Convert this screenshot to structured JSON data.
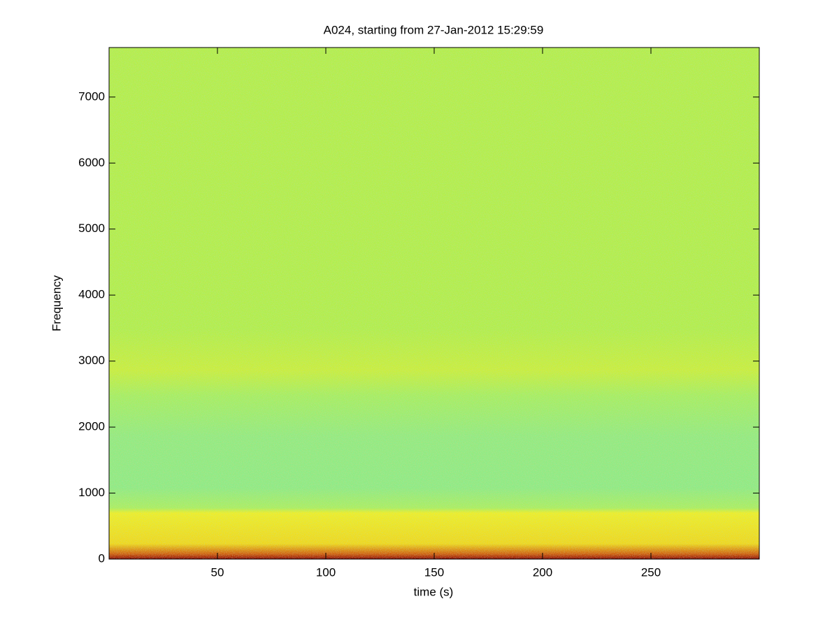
{
  "chart_data": {
    "type": "spectrogram",
    "title": "A024, starting from 27-Jan-2012 15:29:59",
    "x_label": "time (s)",
    "y_label": "Frequency",
    "xlim": [
      0,
      300
    ],
    "xticks": [
      50,
      100,
      150,
      200,
      250
    ],
    "ylim": [
      0,
      7750
    ],
    "yticks": [
      0,
      1000,
      2000,
      3000,
      4000,
      5000,
      6000,
      7000
    ]
  }
}
